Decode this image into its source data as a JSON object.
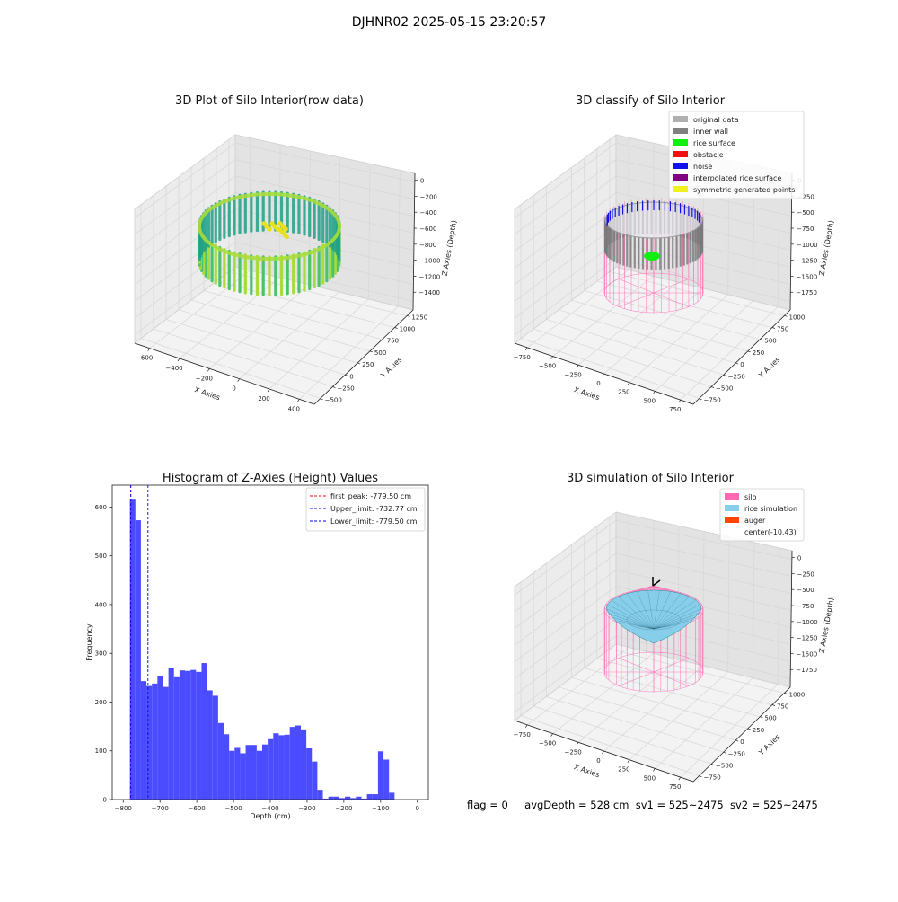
{
  "figure": {
    "suptitle": "DJHNR02 2025-05-15 23:20:57",
    "status": {
      "flag_text": "flag = 0",
      "avg_depth_text": "avgDepth = 528 cm",
      "sv1_text": "sv1 = 525~2475",
      "sv2_text": "sv2 = 525~2475"
    }
  },
  "chart_data": [
    {
      "type": "scatter",
      "projection": "3d",
      "title": "3D Plot of Silo Interior(row data)",
      "xlabel": "X Axies",
      "ylabel": "Y Axies",
      "zlabel": "Z Axies (Depth)",
      "xticks": [
        "−600",
        "−400",
        "−200",
        "0",
        "200",
        "400"
      ],
      "yticks": [
        "−500",
        "−250",
        "0",
        "250",
        "500",
        "750",
        "1000",
        "1250"
      ],
      "zticks": [
        "0",
        "−200",
        "−400",
        "−600",
        "−800",
        "−1000",
        "−1200",
        "−1400"
      ],
      "colormap": "viridis",
      "colors": {
        "ring_light": "#a8dc3c",
        "ring_mid": "#4cc26c",
        "ring_dark": "#1fa187",
        "highlight": "#e8e21c"
      },
      "grid": true
    },
    {
      "type": "scatter",
      "projection": "3d",
      "title": "3D classify of Silo Interior",
      "xlabel": "X Axies",
      "ylabel": "Y Axies",
      "zlabel": "Z Axies (Depth)",
      "xticks": [
        "−750",
        "−500",
        "−250",
        "0",
        "250",
        "500",
        "750"
      ],
      "yticks": [
        "−750",
        "−500",
        "−250",
        "0",
        "250",
        "500",
        "750",
        "1000"
      ],
      "zticks": [
        "0",
        "−250",
        "−500",
        "−750",
        "−1000",
        "−1250",
        "−1500",
        "−1750"
      ],
      "legend": {
        "position": "top-right",
        "entries": [
          {
            "label": "original data",
            "color": "#b0b0b0"
          },
          {
            "label": "inner wall",
            "color": "#808080"
          },
          {
            "label": "rice surface",
            "color": "#11ee11"
          },
          {
            "label": "obstacle",
            "color": "#ee1111"
          },
          {
            "label": "noise",
            "color": "#1111ee"
          },
          {
            "label": "interpolated rice surface",
            "color": "#800080"
          },
          {
            "label": "symmetric generated points",
            "color": "#f0f020"
          }
        ]
      },
      "colors": {
        "silo_wire": "#ff69b4"
      },
      "grid": true
    },
    {
      "type": "bar",
      "subtype": "histogram",
      "title": "Histogram of Z-Axies (Height) Values",
      "xlabel": "Depth (cm)",
      "ylabel": "Frequency",
      "xlim": [
        -830,
        30
      ],
      "ylim": [
        0,
        645
      ],
      "xticks": [
        -800,
        -700,
        -600,
        -500,
        -400,
        -300,
        -200,
        -100,
        0
      ],
      "yticks": [
        0,
        100,
        200,
        300,
        400,
        500,
        600
      ],
      "bin_start": -782,
      "bin_width": 15,
      "values": [
        617,
        573,
        243,
        233,
        238,
        254,
        231,
        271,
        251,
        265,
        264,
        266,
        262,
        280,
        224,
        213,
        157,
        134,
        100,
        106,
        95,
        112,
        112,
        100,
        113,
        124,
        136,
        132,
        133,
        149,
        152,
        144,
        105,
        78,
        20,
        2,
        6,
        6,
        3,
        6,
        3,
        6,
        2,
        11,
        11,
        99,
        82,
        14
      ],
      "color": "#4b4bff",
      "vlines": [
        {
          "label": "first_peak: -779.50 cm",
          "x": -779.5,
          "color": "#ff0000",
          "style": "dashed"
        },
        {
          "label": "Upper_limit: -732.77 cm",
          "x": -732.77,
          "color": "#0000ff",
          "style": "dashed"
        },
        {
          "label": "Lower_limit: -779.50 cm",
          "x": -779.5,
          "color": "#0000ff",
          "style": "dashed"
        }
      ],
      "legend": {
        "position": "top-right"
      },
      "grid": false
    },
    {
      "type": "surface",
      "projection": "3d",
      "title": "3D simulation of Silo Interior",
      "xlabel": "X Axies",
      "ylabel": "Y Axies",
      "zlabel": "Z Axies (Depth)",
      "xticks": [
        "−750",
        "−500",
        "−250",
        "0",
        "250",
        "500",
        "750"
      ],
      "yticks": [
        "−750",
        "−500",
        "−250",
        "0",
        "250",
        "500",
        "750",
        "1000"
      ],
      "zticks": [
        "0",
        "−250",
        "−500",
        "−750",
        "−1000",
        "−1250",
        "−1500",
        "−1750"
      ],
      "legend": {
        "position": "top-right",
        "entries": [
          {
            "label": "silo",
            "color": "#ff69b4"
          },
          {
            "label": "rice simulation",
            "color": "#87ceeb"
          },
          {
            "label": "auger",
            "color": "#ff4500"
          },
          {
            "label": "center(-10,43)",
            "color": "none"
          }
        ]
      },
      "grid": true
    }
  ]
}
